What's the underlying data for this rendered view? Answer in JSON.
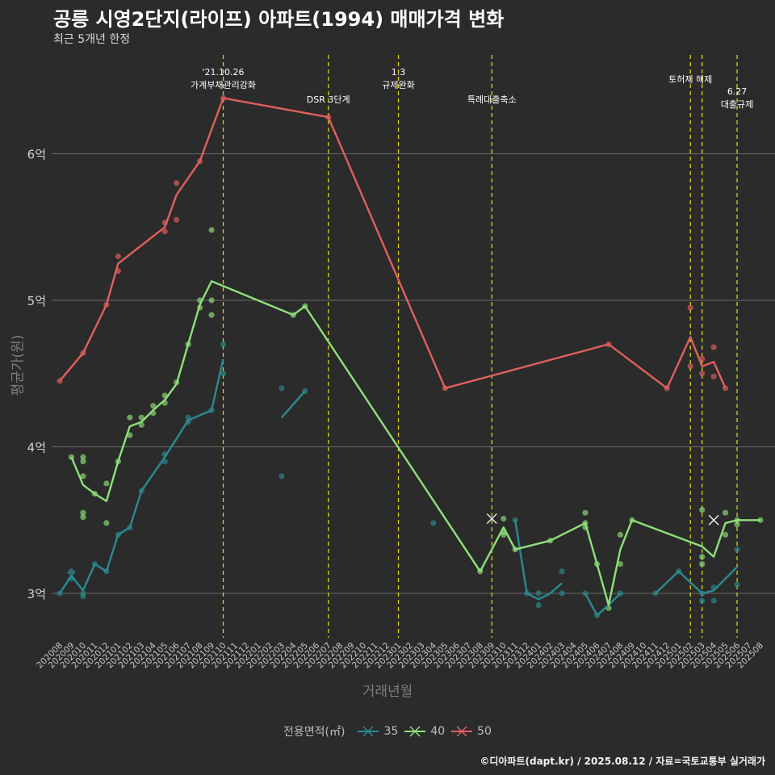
{
  "title": "공릉 시영2단지(라이프) 아파트(1994) 매매가격 변화",
  "subtitle": "최근 5개년 한정",
  "caption": "©디아파트(dapt.kr) / 2025.08.12 / 자료=국토교통부 실거래가",
  "colors": {
    "background": "#2b2b2b",
    "35": "#2a8a91",
    "40": "#8fe07a",
    "50": "#e0605d",
    "policy_line": "#d8d020",
    "grid": "#6a6a6a"
  },
  "chart_data": {
    "type": "line",
    "xlabel": "거래년월",
    "ylabel": "평균가(원)",
    "y_unit_eok": true,
    "ylim": [
      2.7,
      6.4
    ],
    "yticks": [
      3,
      4,
      5,
      6
    ],
    "ytick_labels": [
      "3억",
      "4억",
      "5억",
      "6억"
    ],
    "x_categories": [
      "202008",
      "202009",
      "202010",
      "202011",
      "202012",
      "202101",
      "202102",
      "202103",
      "202104",
      "202105",
      "202106",
      "202107",
      "202108",
      "202109",
      "202110",
      "202111",
      "202112",
      "202201",
      "202202",
      "202203",
      "202204",
      "202205",
      "202206",
      "202207",
      "202208",
      "202209",
      "202210",
      "202211",
      "202212",
      "202301",
      "202302",
      "202303",
      "202304",
      "202305",
      "202306",
      "202307",
      "202308",
      "202309",
      "202310",
      "202311",
      "202312",
      "202401",
      "202402",
      "202403",
      "202404",
      "202405",
      "202406",
      "202407",
      "202408",
      "202409",
      "202410",
      "202411",
      "202412",
      "202501",
      "202502",
      "202503",
      "202504",
      "202505",
      "202506",
      "202507",
      "202508"
    ],
    "legend_title": "전용면적(㎡)",
    "series": [
      {
        "name": "35",
        "segments": [
          [
            [
              "202008",
              3.0
            ],
            [
              "202009",
              3.12
            ],
            [
              "202010",
              3.02
            ],
            [
              "202011",
              3.2
            ],
            [
              "202012",
              3.15
            ],
            [
              "202101",
              3.4
            ],
            [
              "202102",
              3.45
            ],
            [
              "202103",
              3.7
            ],
            [
              "202105",
              3.93
            ],
            [
              "202107",
              4.18
            ],
            [
              "202109",
              4.25
            ],
            [
              "202110",
              4.6
            ]
          ],
          [
            [
              "202203",
              4.2
            ],
            [
              "202205",
              4.38
            ]
          ],
          [
            [
              "202311",
              3.5
            ],
            [
              "202312",
              3.0
            ],
            [
              "202401",
              2.96
            ],
            [
              "202402",
              3.0
            ],
            [
              "202403",
              3.07
            ]
          ],
          [
            [
              "202405",
              3.0
            ],
            [
              "202406",
              2.85
            ],
            [
              "202407",
              2.92
            ],
            [
              "202408",
              3.0
            ]
          ],
          [
            [
              "202411",
              3.0
            ],
            [
              "202501",
              3.15
            ],
            [
              "202503",
              3.0
            ],
            [
              "202504",
              3.02
            ],
            [
              "202506",
              3.18
            ]
          ]
        ],
        "points": [
          [
            "202008",
            3.0
          ],
          [
            "202009",
            3.15
          ],
          [
            "202009",
            3.1
          ],
          [
            "202010",
            3.0
          ],
          [
            "202010",
            2.98
          ],
          [
            "202011",
            3.2
          ],
          [
            "202012",
            3.15
          ],
          [
            "202101",
            3.4
          ],
          [
            "202102",
            3.45
          ],
          [
            "202103",
            3.7
          ],
          [
            "202105",
            3.9
          ],
          [
            "202105",
            3.95
          ],
          [
            "202107",
            4.2
          ],
          [
            "202107",
            4.17
          ],
          [
            "202109",
            4.25
          ],
          [
            "202110",
            4.7
          ],
          [
            "202110",
            4.5
          ],
          [
            "202203",
            4.4
          ],
          [
            "202203",
            3.8
          ],
          [
            "202205",
            4.38
          ],
          [
            "202304",
            3.48
          ],
          [
            "202311",
            3.5
          ],
          [
            "202312",
            3.0
          ],
          [
            "202401",
            2.92
          ],
          [
            "202401",
            3.0
          ],
          [
            "202403",
            3.15
          ],
          [
            "202403",
            3.0
          ],
          [
            "202405",
            3.0
          ],
          [
            "202406",
            2.85
          ],
          [
            "202408",
            3.0
          ],
          [
            "202411",
            3.0
          ],
          [
            "202501",
            3.15
          ],
          [
            "202503",
            3.0
          ],
          [
            "202503",
            2.95
          ],
          [
            "202504",
            3.04
          ],
          [
            "202504",
            2.95
          ],
          [
            "202506",
            3.06
          ],
          [
            "202506",
            3.3
          ]
        ]
      },
      {
        "name": "40",
        "segments": [
          [
            [
              "202009",
              3.93
            ],
            [
              "202010",
              3.74
            ],
            [
              "202011",
              3.68
            ],
            [
              "202012",
              3.63
            ],
            [
              "202101",
              3.9
            ],
            [
              "202102",
              4.14
            ],
            [
              "202103",
              4.17
            ],
            [
              "202104",
              4.25
            ],
            [
              "202105",
              4.32
            ],
            [
              "202106",
              4.43
            ],
            [
              "202107",
              4.7
            ],
            [
              "202108",
              4.97
            ],
            [
              "202109",
              5.13
            ],
            [
              "202204",
              4.9
            ],
            [
              "202205",
              4.96
            ],
            [
              "202308",
              3.15
            ],
            [
              "202310",
              3.45
            ],
            [
              "202311",
              3.3
            ],
            [
              "202402",
              3.36
            ],
            [
              "202405",
              3.48
            ],
            [
              "202406",
              3.2
            ],
            [
              "202407",
              2.92
            ],
            [
              "202408",
              3.3
            ],
            [
              "202409",
              3.5
            ],
            [
              "202503",
              3.32
            ],
            [
              "202504",
              3.25
            ],
            [
              "202505",
              3.48
            ],
            [
              "202506",
              3.5
            ],
            [
              "202508",
              3.5
            ]
          ]
        ],
        "points": [
          [
            "202009",
            3.93
          ],
          [
            "202010",
            3.93
          ],
          [
            "202010",
            3.9
          ],
          [
            "202010",
            3.8
          ],
          [
            "202010",
            3.55
          ],
          [
            "202010",
            3.52
          ],
          [
            "202011",
            3.68
          ],
          [
            "202012",
            3.75
          ],
          [
            "202012",
            3.48
          ],
          [
            "202101",
            3.9
          ],
          [
            "202102",
            4.2
          ],
          [
            "202102",
            4.08
          ],
          [
            "202103",
            4.2
          ],
          [
            "202103",
            4.15
          ],
          [
            "202104",
            4.28
          ],
          [
            "202104",
            4.23
          ],
          [
            "202105",
            4.35
          ],
          [
            "202105",
            4.3
          ],
          [
            "202106",
            4.44
          ],
          [
            "202107",
            4.7
          ],
          [
            "202108",
            5.0
          ],
          [
            "202108",
            4.95
          ],
          [
            "202109",
            5.48
          ],
          [
            "202109",
            5.0
          ],
          [
            "202109",
            4.9
          ],
          [
            "202204",
            4.9
          ],
          [
            "202205",
            4.96
          ],
          [
            "202308",
            3.15
          ],
          [
            "202310",
            3.51
          ],
          [
            "202310",
            3.42
          ],
          [
            "202310",
            3.4
          ],
          [
            "202311",
            3.3
          ],
          [
            "202402",
            3.36
          ],
          [
            "202405",
            3.55
          ],
          [
            "202405",
            3.48
          ],
          [
            "202405",
            3.45
          ],
          [
            "202406",
            3.2
          ],
          [
            "202407",
            2.9
          ],
          [
            "202408",
            3.4
          ],
          [
            "202408",
            3.2
          ],
          [
            "202409",
            3.5
          ],
          [
            "202503",
            3.57
          ],
          [
            "202503",
            3.25
          ],
          [
            "202503",
            3.2
          ],
          [
            "202505",
            3.55
          ],
          [
            "202505",
            3.4
          ],
          [
            "202506",
            3.5
          ],
          [
            "202506",
            3.47
          ],
          [
            "202508",
            3.5
          ]
        ],
        "x_markers": [
          [
            "202309",
            3.51
          ],
          [
            "202504",
            3.5
          ]
        ]
      },
      {
        "name": "50",
        "segments": [
          [
            [
              "202008",
              4.45
            ],
            [
              "202010",
              4.64
            ],
            [
              "202012",
              4.97
            ],
            [
              "202101",
              5.25
            ],
            [
              "202105",
              5.5
            ],
            [
              "202106",
              5.72
            ],
            [
              "202108",
              5.95
            ],
            [
              "202110",
              6.38
            ],
            [
              "202207",
              6.25
            ],
            [
              "202305",
              4.4
            ],
            [
              "202407",
              4.7
            ],
            [
              "202412",
              4.4
            ],
            [
              "202502",
              4.75
            ],
            [
              "202503",
              4.55
            ],
            [
              "202504",
              4.58
            ],
            [
              "202505",
              4.4
            ]
          ]
        ],
        "points": [
          [
            "202008",
            4.45
          ],
          [
            "202010",
            4.64
          ],
          [
            "202012",
            4.97
          ],
          [
            "202101",
            5.3
          ],
          [
            "202101",
            5.2
          ],
          [
            "202105",
            5.53
          ],
          [
            "202105",
            5.47
          ],
          [
            "202106",
            5.8
          ],
          [
            "202106",
            5.55
          ],
          [
            "202108",
            5.95
          ],
          [
            "202110",
            6.38
          ],
          [
            "202207",
            6.25
          ],
          [
            "202305",
            4.4
          ],
          [
            "202407",
            4.7
          ],
          [
            "202412",
            4.4
          ],
          [
            "202502",
            4.95
          ],
          [
            "202502",
            4.55
          ],
          [
            "202503",
            4.6
          ],
          [
            "202503",
            4.5
          ],
          [
            "202504",
            4.68
          ],
          [
            "202504",
            4.48
          ],
          [
            "202505",
            4.4
          ]
        ]
      }
    ],
    "policy_events": [
      {
        "x": "202110",
        "label": "'21.10.26\n가계부채관리강화"
      },
      {
        "x": "202207",
        "label": "DSR 3단계"
      },
      {
        "x": "202301",
        "label": "1.3\n규제완화"
      },
      {
        "x": "202309",
        "label": "특례대출축소"
      },
      {
        "x": "202502",
        "label": "토허제 해제"
      },
      {
        "x": "202503",
        "label": ""
      },
      {
        "x": "202506",
        "label": "6.27\n대출규제"
      }
    ]
  }
}
